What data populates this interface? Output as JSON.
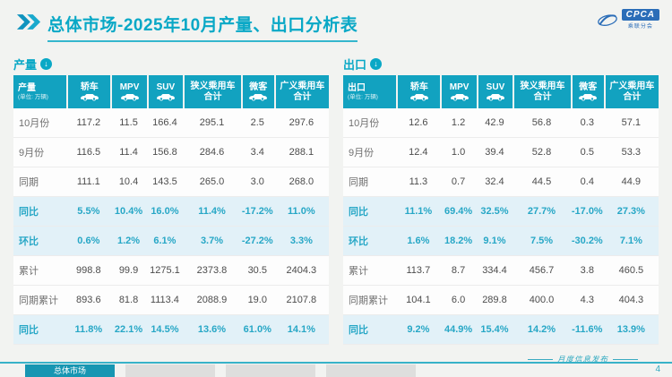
{
  "header": {
    "title": "总体市场-2025年10月产量、出口分析表",
    "logo": {
      "brand": "CPCA",
      "sub": "乘联分会"
    }
  },
  "icons": {
    "down_arrow": "↓"
  },
  "tables": {
    "production": {
      "section_label": "产量",
      "first_col_title": "产量",
      "unit_note": "(单位: 万辆)",
      "columns": [
        {
          "label": "轿车",
          "icon": "car"
        },
        {
          "label": "MPV",
          "icon": "car"
        },
        {
          "label": "SUV",
          "icon": "car"
        },
        {
          "label": "狭义乘用车 合计",
          "icon": null
        },
        {
          "label": "微客",
          "icon": "car"
        },
        {
          "label": "广义乘用车 合计",
          "icon": null
        }
      ],
      "rows": [
        {
          "label": "10月份",
          "highlight": false,
          "values": [
            "117.2",
            "11.5",
            "166.4",
            "295.1",
            "2.5",
            "297.6"
          ]
        },
        {
          "label": "9月份",
          "highlight": false,
          "values": [
            "116.5",
            "11.4",
            "156.8",
            "284.6",
            "3.4",
            "288.1"
          ]
        },
        {
          "label": "同期",
          "highlight": false,
          "values": [
            "111.1",
            "10.4",
            "143.5",
            "265.0",
            "3.0",
            "268.0"
          ]
        },
        {
          "label": "同比",
          "highlight": true,
          "values": [
            "5.5%",
            "10.4%",
            "16.0%",
            "11.4%",
            "-17.2%",
            "11.0%"
          ]
        },
        {
          "label": "环比",
          "highlight": true,
          "values": [
            "0.6%",
            "1.2%",
            "6.1%",
            "3.7%",
            "-27.2%",
            "3.3%"
          ]
        },
        {
          "label": "累计",
          "highlight": false,
          "values": [
            "998.8",
            "99.9",
            "1275.1",
            "2373.8",
            "30.5",
            "2404.3"
          ]
        },
        {
          "label": "同期累计",
          "highlight": false,
          "values": [
            "893.6",
            "81.8",
            "1113.4",
            "2088.9",
            "19.0",
            "2107.8"
          ]
        },
        {
          "label": "同比",
          "highlight": true,
          "values": [
            "11.8%",
            "22.1%",
            "14.5%",
            "13.6%",
            "61.0%",
            "14.1%"
          ]
        }
      ]
    },
    "export": {
      "section_label": "出口",
      "first_col_title": "出口",
      "unit_note": "(单位: 万辆)",
      "columns": [
        {
          "label": "轿车",
          "icon": "car"
        },
        {
          "label": "MPV",
          "icon": "car"
        },
        {
          "label": "SUV",
          "icon": "car"
        },
        {
          "label": "狭义乘用车 合计",
          "icon": null
        },
        {
          "label": "微客",
          "icon": "car"
        },
        {
          "label": "广义乘用车 合计",
          "icon": null
        }
      ],
      "rows": [
        {
          "label": "10月份",
          "highlight": false,
          "values": [
            "12.6",
            "1.2",
            "42.9",
            "56.8",
            "0.3",
            "57.1"
          ]
        },
        {
          "label": "9月份",
          "highlight": false,
          "values": [
            "12.4",
            "1.0",
            "39.4",
            "52.8",
            "0.5",
            "53.3"
          ]
        },
        {
          "label": "同期",
          "highlight": false,
          "values": [
            "11.3",
            "0.7",
            "32.4",
            "44.5",
            "0.4",
            "44.9"
          ]
        },
        {
          "label": "同比",
          "highlight": true,
          "values": [
            "11.1%",
            "69.4%",
            "32.5%",
            "27.7%",
            "-17.0%",
            "27.3%"
          ]
        },
        {
          "label": "环比",
          "highlight": true,
          "values": [
            "1.6%",
            "18.2%",
            "9.1%",
            "7.5%",
            "-30.2%",
            "7.1%"
          ]
        },
        {
          "label": "累计",
          "highlight": false,
          "values": [
            "113.7",
            "8.7",
            "334.4",
            "456.7",
            "3.8",
            "460.5"
          ]
        },
        {
          "label": "同期累计",
          "highlight": false,
          "values": [
            "104.1",
            "6.0",
            "289.8",
            "400.0",
            "4.3",
            "404.3"
          ]
        },
        {
          "label": "同比",
          "highlight": true,
          "values": [
            "9.2%",
            "44.9%",
            "15.4%",
            "14.2%",
            "-11.6%",
            "13.9%"
          ]
        }
      ]
    }
  },
  "footer": {
    "tabs": [
      {
        "label": "总体市场",
        "active": true
      },
      {
        "label": "",
        "active": false
      },
      {
        "label": "",
        "active": false
      },
      {
        "label": "",
        "active": false
      }
    ],
    "note": "月度信息发布",
    "page": "4"
  },
  "colors": {
    "accent_teal": "#12a2c0",
    "highlight_bg": "#e2f1f8",
    "highlight_text": "#27a7c6",
    "logo_blue": "#2b6db8"
  }
}
